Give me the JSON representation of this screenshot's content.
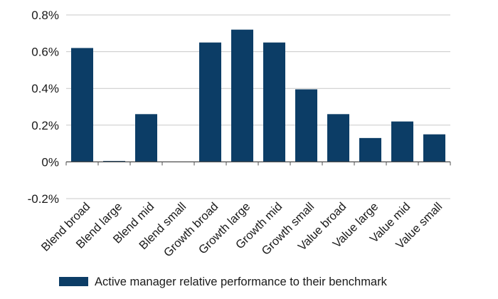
{
  "chart_data": {
    "type": "bar",
    "categories": [
      "Blend broad",
      "Blend large",
      "Blend mid",
      "Blend small",
      "Growth broad",
      "Growth large",
      "Growth mid",
      "Growth small",
      "Value broad",
      "Value large",
      "Value mid",
      "Value small"
    ],
    "series": [
      {
        "name": "Active manager relative performance to their benchmark",
        "color": "#0c3d66",
        "values": [
          0.62,
          0.005,
          0.26,
          0.0,
          0.65,
          0.72,
          0.65,
          0.395,
          0.26,
          0.13,
          0.22,
          0.15
        ]
      }
    ],
    "y_ticks": [
      0.8,
      0.6,
      0.4,
      0.2,
      0,
      -0.2
    ],
    "y_tick_labels": [
      "0.8%",
      "0.6%",
      "0.4%",
      "0.2%",
      "0%",
      "-0.2%"
    ],
    "ylim": [
      -0.2,
      0.8
    ],
    "grid": true,
    "legend_position": "bottom",
    "colors": {
      "bar": "#0c3d66",
      "grid": "#c8c8c8",
      "axis": "#4d4d4d"
    }
  }
}
